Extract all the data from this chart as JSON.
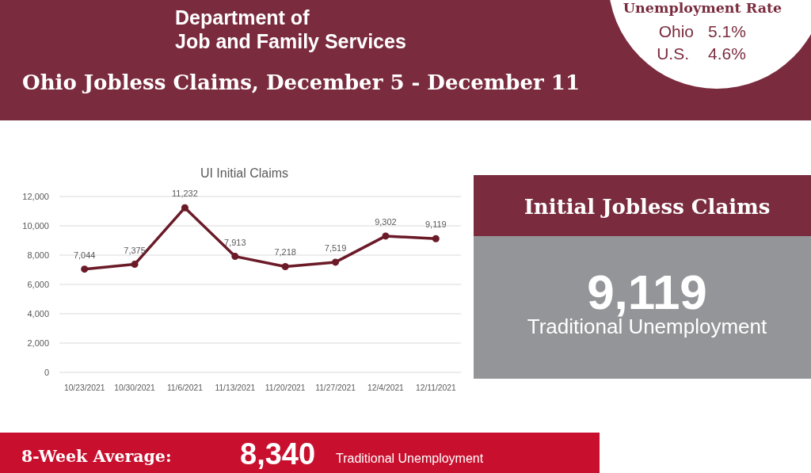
{
  "chart_data": [
    {
      "type": "other",
      "title": "Ohio Jobless Claims, December 5 - December 11",
      "annotations": [
        "Department of",
        "Job and Family Services"
      ]
    },
    {
      "type": "other",
      "title": "Unemployment Rate",
      "annotations": [
        "Ohio",
        "5.1%",
        "U.S.",
        "4.6%"
      ]
    },
    {
      "type": "line",
      "title": "UI Initial Claims",
      "categories": [
        "10/23/2021",
        "10/30/2021",
        "11/6/2021",
        "11/13/2021",
        "11/20/2021",
        "11/27/2021",
        "12/4/2021",
        "12/11/2021"
      ],
      "values": [
        7044,
        7375,
        11232,
        7913,
        7218,
        7519,
        9302,
        9119
      ],
      "value_labels": [
        "7,044",
        "7,375",
        "11,232",
        "7,913",
        "7,218",
        "7,519",
        "9,302",
        "9,119"
      ],
      "color": "#6b1a28",
      "ylim": [
        0,
        12000
      ],
      "yticks": [
        0,
        {
          "value": 2000,
          "label": "2,000"
        },
        {
          "value": 4000,
          "label": "4,000"
        },
        {
          "value": 6000,
          "label": "6,000"
        },
        {
          "value": 8000,
          "label": "8,000"
        },
        {
          "value": 10000,
          "label": "10,000"
        },
        {
          "value": 12000,
          "label": "12,000"
        }
      ],
      "grid": "y",
      "marker": "circle"
    },
    {
      "type": "other",
      "title": "Initial Jobless Claims",
      "annotations": [
        "9,119",
        "Traditional Unemployment"
      ]
    },
    {
      "type": "other",
      "title": "8-Week Average:",
      "annotations": [
        "8,340",
        "Traditional Unemployment"
      ]
    }
  ]
}
